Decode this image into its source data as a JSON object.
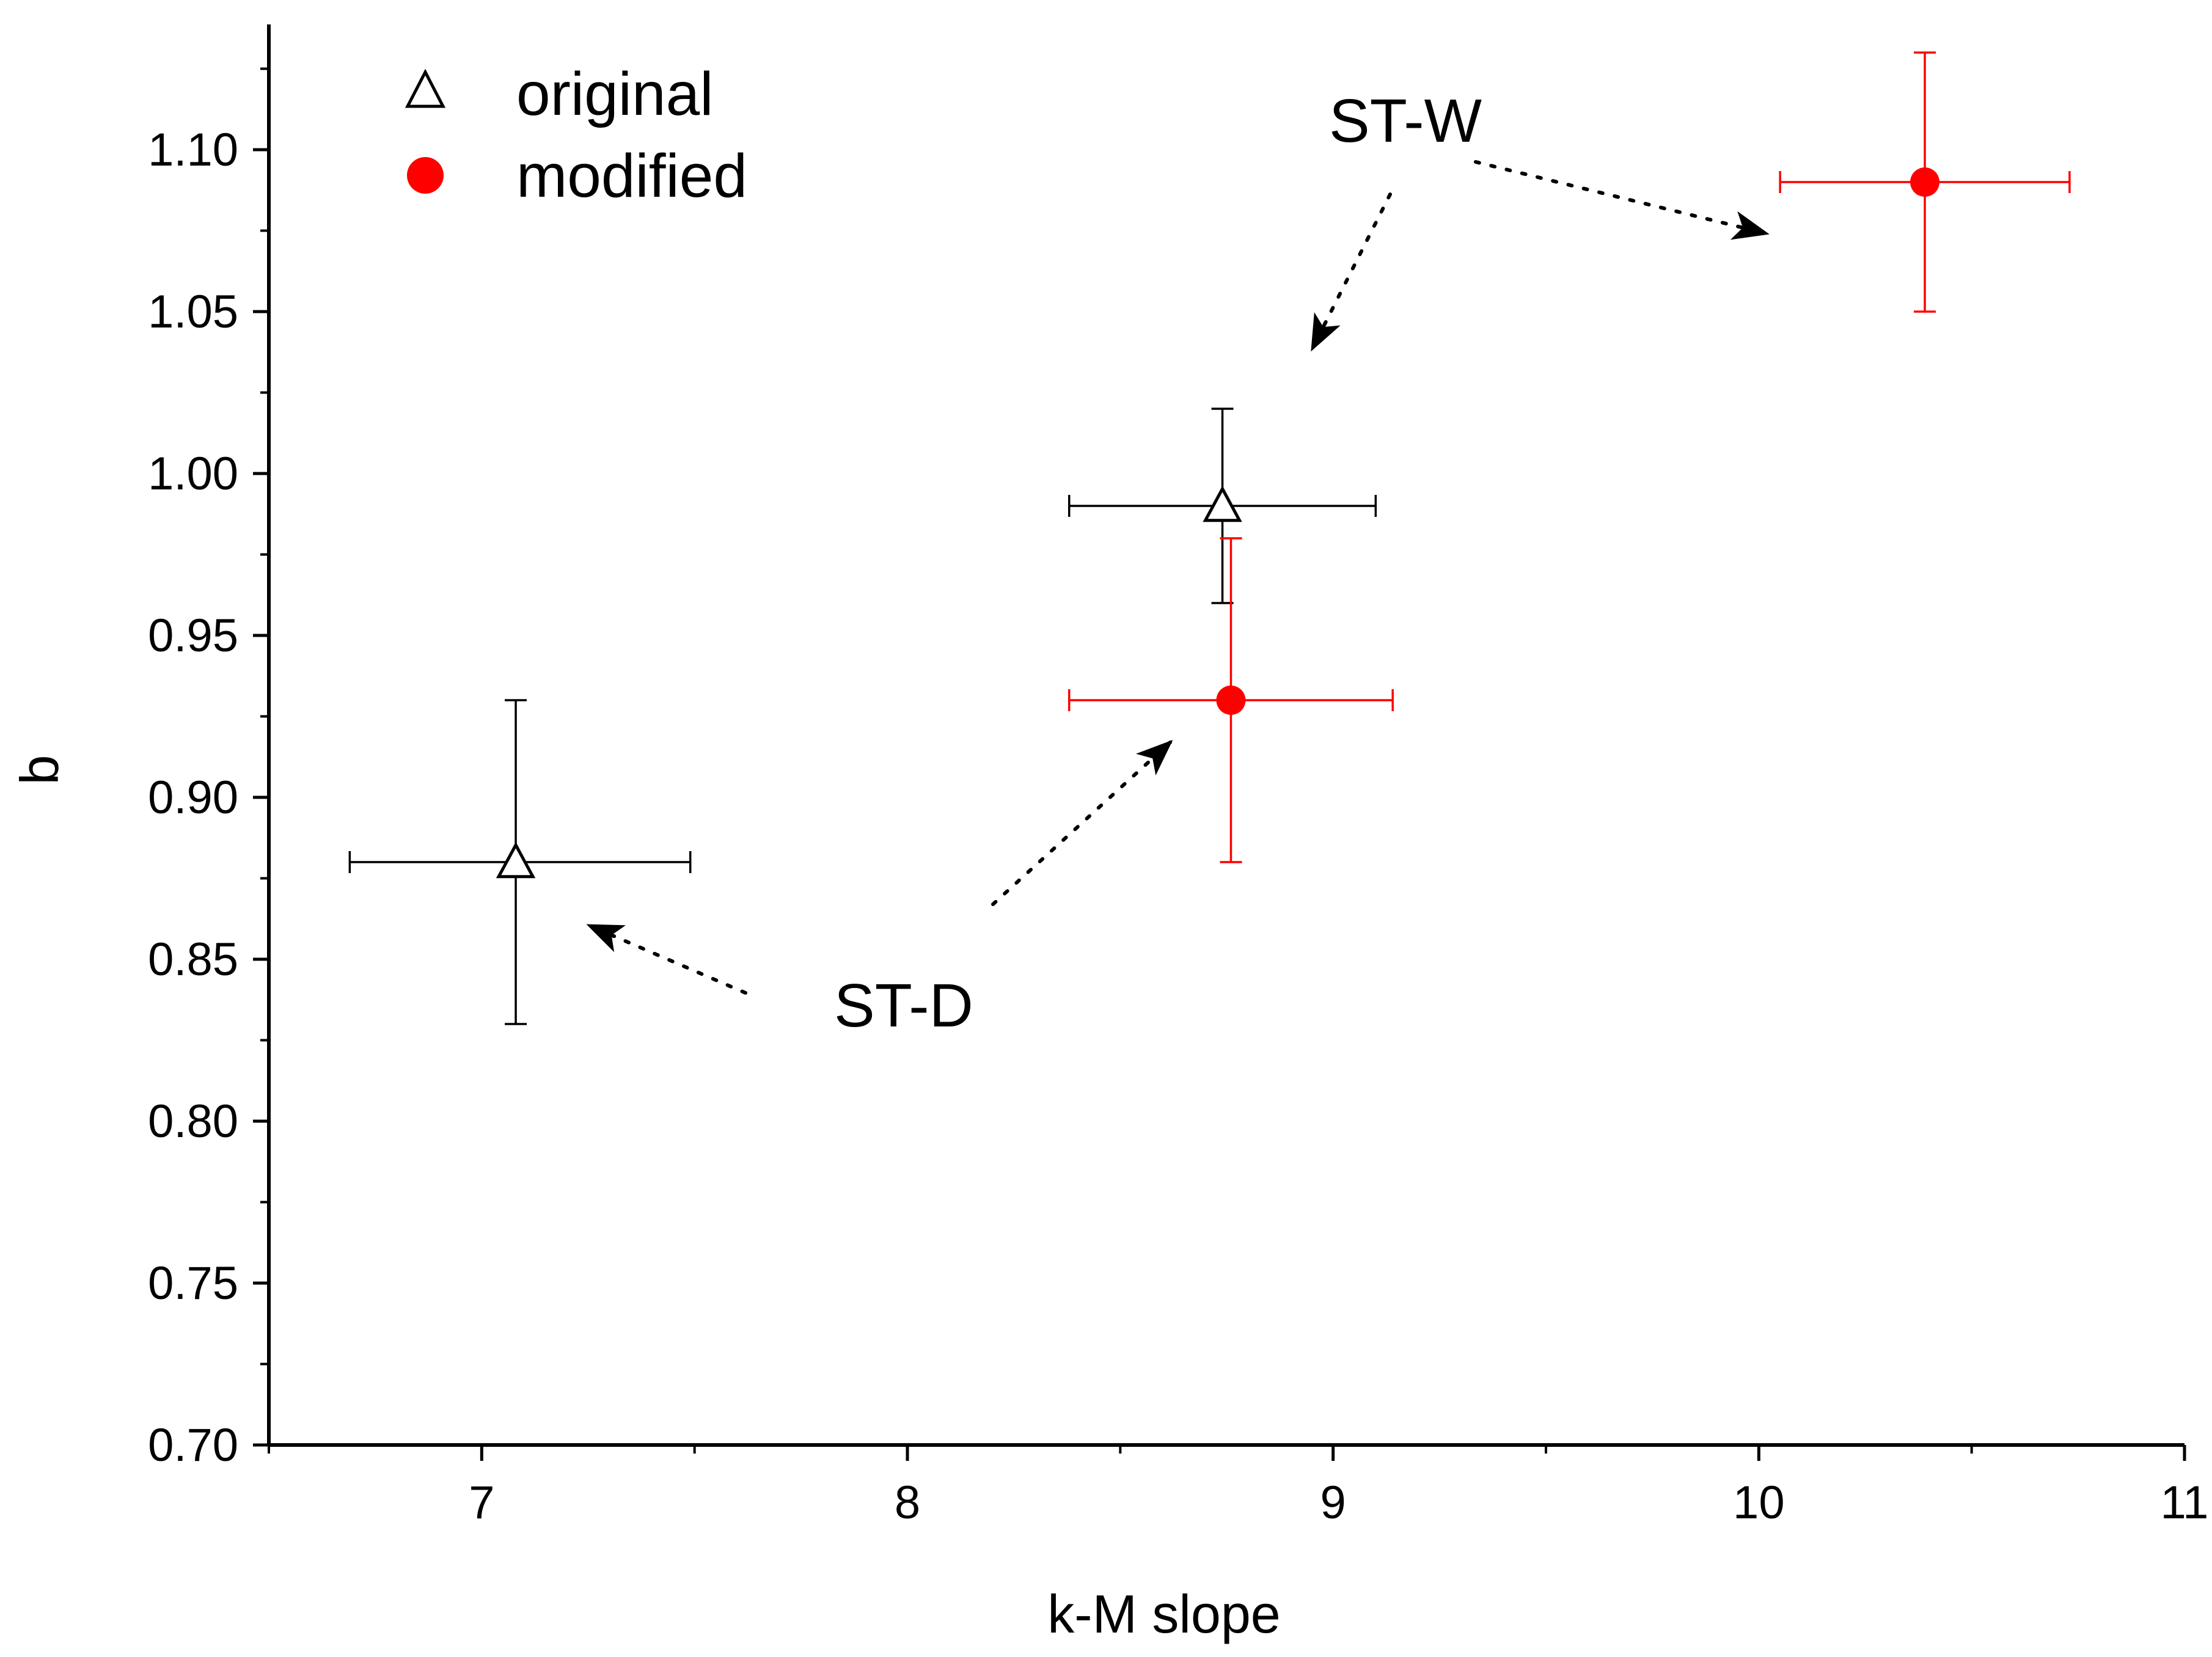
{
  "chart_data": {
    "type": "scatter",
    "title": "",
    "xlabel": "k-M slope",
    "ylabel": "b",
    "xlim": [
      6.5,
      11
    ],
    "ylim": [
      0.7,
      1.135
    ],
    "xticks": [
      7,
      8,
      9,
      10,
      11
    ],
    "yticks": [
      0.7,
      0.75,
      0.8,
      0.85,
      0.9,
      0.95,
      1.0,
      1.05,
      1.1
    ],
    "ytick_labels": [
      "0.70",
      "0.75",
      "0.80",
      "0.85",
      "0.90",
      "0.95",
      "1.00",
      "1.05",
      "1.10"
    ],
    "xtick_labels": [
      "7",
      "8",
      "9",
      "10",
      "11"
    ],
    "grid": false,
    "legend_position": "top-left",
    "series": [
      {
        "name": "original",
        "marker": "open-triangle",
        "color": "#000000",
        "points": [
          {
            "x": 7.08,
            "y": 0.88,
            "xerr": [
              6.69,
              7.49
            ],
            "yerr": [
              0.83,
              0.93
            ]
          },
          {
            "x": 8.74,
            "y": 0.99,
            "xerr": [
              8.38,
              9.1
            ],
            "yerr": [
              0.96,
              1.02
            ]
          }
        ]
      },
      {
        "name": "modified",
        "marker": "filled-circle",
        "color": "#ff0000",
        "points": [
          {
            "x": 8.76,
            "y": 0.93,
            "xerr": [
              8.38,
              9.14
            ],
            "yerr": [
              0.88,
              0.98
            ]
          },
          {
            "x": 10.39,
            "y": 1.09,
            "xerr": [
              10.05,
              10.73
            ],
            "yerr": [
              1.05,
              1.13
            ]
          }
        ]
      }
    ],
    "annotations": [
      {
        "text": "ST-W",
        "targets": [
          "modified-2",
          "original-2"
        ]
      },
      {
        "text": "ST-D",
        "targets": [
          "original-1",
          "modified-1"
        ]
      }
    ]
  }
}
